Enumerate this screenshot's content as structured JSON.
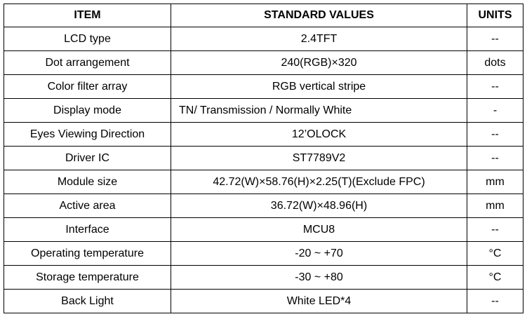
{
  "table": {
    "header": [
      "ITEM",
      "STANDARD VALUES",
      "UNITS"
    ],
    "rows": [
      [
        "LCD type",
        "2.4TFT",
        "--"
      ],
      [
        "Dot arrangement",
        "240(RGB)×320",
        "dots"
      ],
      [
        "Color filter array",
        "RGB vertical stripe",
        "--"
      ],
      [
        "Display mode",
        "TN/ Transmission / Normally White",
        "-"
      ],
      [
        "Eyes Viewing Direction",
        "12’OLOCK",
        "--"
      ],
      [
        "Driver IC",
        "ST7789V2",
        "--"
      ],
      [
        "Module size",
        "42.72(W)×58.76(H)×2.25(T)(Exclude FPC)",
        "mm"
      ],
      [
        "Active area",
        "36.72(W)×48.96(H)",
        "mm"
      ],
      [
        "Interface",
        "MCU8",
        "--"
      ],
      [
        "Operating temperature",
        "-20 ~ +70",
        "°C"
      ],
      [
        "Storage temperature",
        "-30 ~ +80",
        "°C"
      ],
      [
        "Back Light",
        "White LED*4",
        "--"
      ]
    ]
  }
}
